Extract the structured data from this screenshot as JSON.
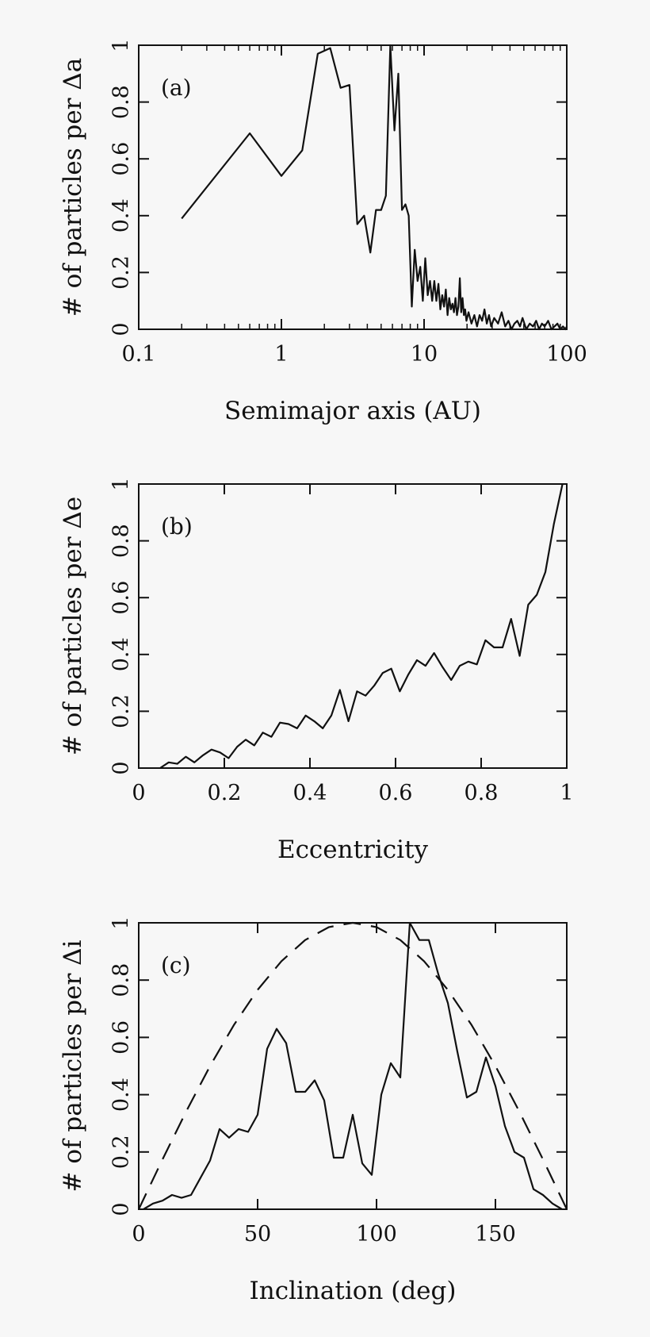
{
  "chart_data": [
    {
      "type": "line",
      "panel_label": "(a)",
      "xlabel": "Semimajor axis (AU)",
      "ylabel": "# of particles per Δa",
      "xscale": "log",
      "xlim": [
        0.1,
        100
      ],
      "ylim": [
        0,
        1
      ],
      "x_ticks": [
        0.1,
        1,
        10,
        100
      ],
      "x_tick_labels": [
        "0.1",
        "1",
        "10",
        "100"
      ],
      "y_ticks": [
        0,
        0.2,
        0.4,
        0.6,
        0.8,
        1
      ],
      "y_tick_labels": [
        "0",
        "0.2",
        "0.4",
        "0.6",
        "0.8",
        "1"
      ],
      "series": [
        {
          "style": "solid",
          "x": [
            0.2,
            0.6,
            1.0,
            1.4,
            1.8,
            2.2,
            2.6,
            3.0,
            3.4,
            3.8,
            4.2,
            4.6,
            5.0,
            5.4,
            5.8,
            6.2,
            6.6,
            7.0,
            7.4,
            7.8,
            8.2,
            8.6,
            9.0,
            9.4,
            9.8,
            10.2,
            10.6,
            11.0,
            11.4,
            11.8,
            12.2,
            12.6,
            13.0,
            13.4,
            13.8,
            14.2,
            14.6,
            15.0,
            15.4,
            15.8,
            16.2,
            16.6,
            17.0,
            17.4,
            17.8,
            18.2,
            18.6,
            19.0,
            19.4,
            19.8,
            20.5,
            21.5,
            22.5,
            23.5,
            24.5,
            25.5,
            26.5,
            27.5,
            28.5,
            29.5,
            31,
            33,
            35,
            37,
            39,
            41,
            43,
            45,
            47,
            49,
            52,
            55,
            58,
            61,
            64,
            67,
            70,
            74,
            78,
            82,
            86,
            90,
            94,
            98,
            100
          ],
          "y": [
            0.39,
            0.69,
            0.54,
            0.63,
            0.97,
            0.99,
            0.85,
            0.86,
            0.37,
            0.4,
            0.27,
            0.42,
            0.42,
            0.47,
            1.0,
            0.7,
            0.9,
            0.42,
            0.44,
            0.4,
            0.08,
            0.28,
            0.17,
            0.22,
            0.1,
            0.25,
            0.12,
            0.17,
            0.1,
            0.17,
            0.1,
            0.16,
            0.07,
            0.12,
            0.08,
            0.14,
            0.05,
            0.11,
            0.07,
            0.09,
            0.06,
            0.11,
            0.05,
            0.08,
            0.18,
            0.06,
            0.11,
            0.05,
            0.07,
            0.03,
            0.06,
            0.02,
            0.05,
            0.01,
            0.05,
            0.03,
            0.07,
            0.02,
            0.05,
            0.01,
            0.04,
            0.02,
            0.06,
            0.01,
            0.03,
            0.0,
            0.02,
            0.03,
            0.01,
            0.04,
            0.0,
            0.02,
            0.01,
            0.03,
            0.0,
            0.02,
            0.01,
            0.03,
            0.0,
            0.01,
            0.02,
            0.0,
            0.01,
            0.0,
            0.01
          ]
        }
      ]
    },
    {
      "type": "line",
      "panel_label": "(b)",
      "xlabel": "Eccentricity",
      "ylabel": "# of particles per Δe",
      "xscale": "linear",
      "xlim": [
        0,
        1
      ],
      "ylim": [
        0,
        1
      ],
      "x_ticks": [
        0,
        0.2,
        0.4,
        0.6,
        0.8,
        1
      ],
      "x_tick_labels": [
        "0",
        "0.2",
        "0.4",
        "0.6",
        "0.8",
        "1"
      ],
      "y_ticks": [
        0,
        0.2,
        0.4,
        0.6,
        0.8,
        1
      ],
      "y_tick_labels": [
        "0",
        "0.2",
        "0.4",
        "0.6",
        "0.8",
        "1"
      ],
      "series": [
        {
          "style": "solid",
          "x": [
            0.05,
            0.07,
            0.09,
            0.11,
            0.13,
            0.15,
            0.17,
            0.19,
            0.21,
            0.23,
            0.25,
            0.27,
            0.29,
            0.31,
            0.33,
            0.35,
            0.37,
            0.39,
            0.41,
            0.43,
            0.45,
            0.47,
            0.49,
            0.51,
            0.53,
            0.55,
            0.57,
            0.59,
            0.61,
            0.63,
            0.65,
            0.67,
            0.69,
            0.71,
            0.73,
            0.75,
            0.77,
            0.79,
            0.81,
            0.83,
            0.85,
            0.87,
            0.89,
            0.91,
            0.93,
            0.95,
            0.97,
            0.99
          ],
          "y": [
            0.0,
            0.02,
            0.015,
            0.04,
            0.02,
            0.045,
            0.065,
            0.055,
            0.035,
            0.075,
            0.1,
            0.08,
            0.125,
            0.11,
            0.16,
            0.155,
            0.14,
            0.185,
            0.165,
            0.14,
            0.185,
            0.275,
            0.165,
            0.27,
            0.255,
            0.29,
            0.335,
            0.35,
            0.27,
            0.33,
            0.38,
            0.36,
            0.405,
            0.355,
            0.31,
            0.36,
            0.375,
            0.365,
            0.45,
            0.425,
            0.425,
            0.525,
            0.395,
            0.575,
            0.61,
            0.69,
            0.86,
            1.0
          ]
        }
      ]
    },
    {
      "type": "line",
      "panel_label": "(c)",
      "xlabel": "Inclination (deg)",
      "ylabel": "# of particles per Δi",
      "xscale": "linear",
      "xlim": [
        0,
        180
      ],
      "ylim": [
        0,
        1
      ],
      "x_ticks": [
        0,
        50,
        100,
        150
      ],
      "x_tick_labels": [
        "0",
        "50",
        "100",
        "150"
      ],
      "y_ticks": [
        0,
        0.2,
        0.4,
        0.6,
        0.8,
        1
      ],
      "y_tick_labels": [
        "0",
        "0.2",
        "0.4",
        "0.6",
        "0.8",
        "1"
      ],
      "series": [
        {
          "style": "solid",
          "x": [
            2,
            6,
            10,
            14,
            18,
            22,
            26,
            30,
            34,
            38,
            42,
            46,
            50,
            54,
            58,
            62,
            66,
            70,
            74,
            78,
            82,
            86,
            90,
            94,
            98,
            102,
            106,
            110,
            114,
            118,
            122,
            126,
            130,
            134,
            138,
            142,
            146,
            150,
            154,
            158,
            162,
            166,
            170,
            174,
            178
          ],
          "y": [
            0.0,
            0.02,
            0.03,
            0.05,
            0.04,
            0.05,
            0.11,
            0.17,
            0.28,
            0.25,
            0.28,
            0.27,
            0.33,
            0.56,
            0.63,
            0.58,
            0.41,
            0.41,
            0.45,
            0.38,
            0.18,
            0.18,
            0.33,
            0.16,
            0.12,
            0.4,
            0.51,
            0.46,
            1.0,
            0.94,
            0.94,
            0.82,
            0.72,
            0.55,
            0.39,
            0.41,
            0.53,
            0.43,
            0.29,
            0.2,
            0.18,
            0.07,
            0.05,
            0.02,
            0.0
          ]
        },
        {
          "style": "dashed",
          "x": [
            0,
            10,
            20,
            30,
            40,
            50,
            60,
            70,
            80,
            90,
            100,
            110,
            120,
            130,
            140,
            150,
            160,
            170,
            180
          ],
          "y": [
            0.0,
            0.174,
            0.342,
            0.5,
            0.643,
            0.766,
            0.866,
            0.94,
            0.985,
            1.0,
            0.985,
            0.94,
            0.866,
            0.766,
            0.643,
            0.5,
            0.342,
            0.174,
            0.0
          ]
        }
      ]
    }
  ]
}
